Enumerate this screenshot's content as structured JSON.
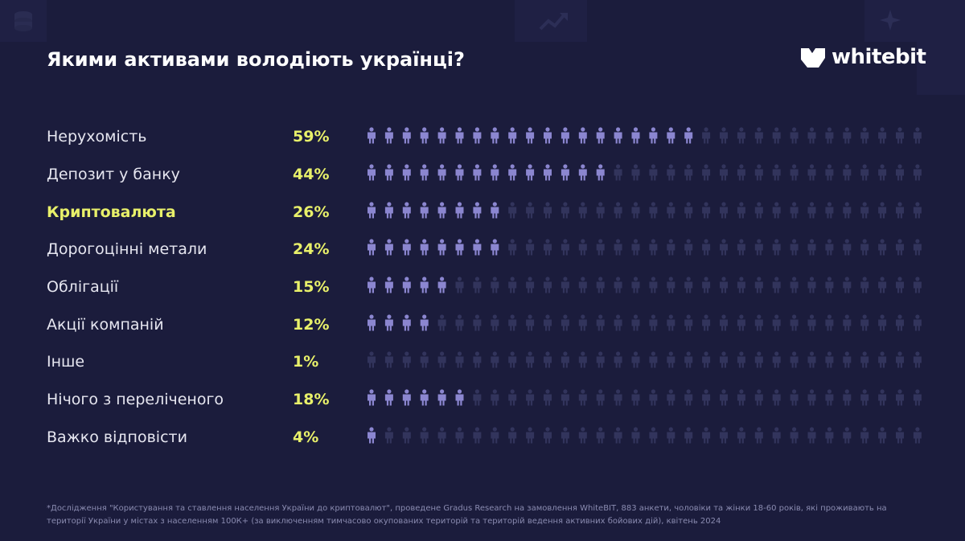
{
  "title": "Якими активами володіють українці?",
  "brand": "whitebit",
  "colors": {
    "background": "#1b1c3c",
    "figure_active": "#8b86d0",
    "figure_inactive": "#32345c",
    "highlight": "#e8f06a"
  },
  "chart_data": {
    "type": "bar",
    "title": "Якими активами володіють українці?",
    "total_figures": 32,
    "categories": [
      "Нерухомість",
      "Депозит у банку",
      "Криптовалюта",
      "Дорогоцінні метали",
      "Облігації",
      "Акції компаній",
      "Інше",
      "Нічого з переліченого",
      "Важко відповісти"
    ],
    "values": [
      59,
      44,
      26,
      24,
      15,
      12,
      1,
      18,
      4
    ],
    "value_labels": [
      "59%",
      "44%",
      "26%",
      "24%",
      "15%",
      "12%",
      "1%",
      "18%",
      "4%"
    ],
    "highlighted_category": "Криптовалюта",
    "unit": "%",
    "xlim": [
      0,
      100
    ]
  },
  "footnote": "*Дослідження \"Користування та ставлення населення України до криптовалют\", проведене Gradus Research на замовлення WhiteBIT, 883 анкети, чоловіки та жінки 18-60 років, які проживають на території України у містах з населенням 100К+ (за виключенням тимчасово окупованих територій та територій ведення активних бойових дій), квітень 2024"
}
